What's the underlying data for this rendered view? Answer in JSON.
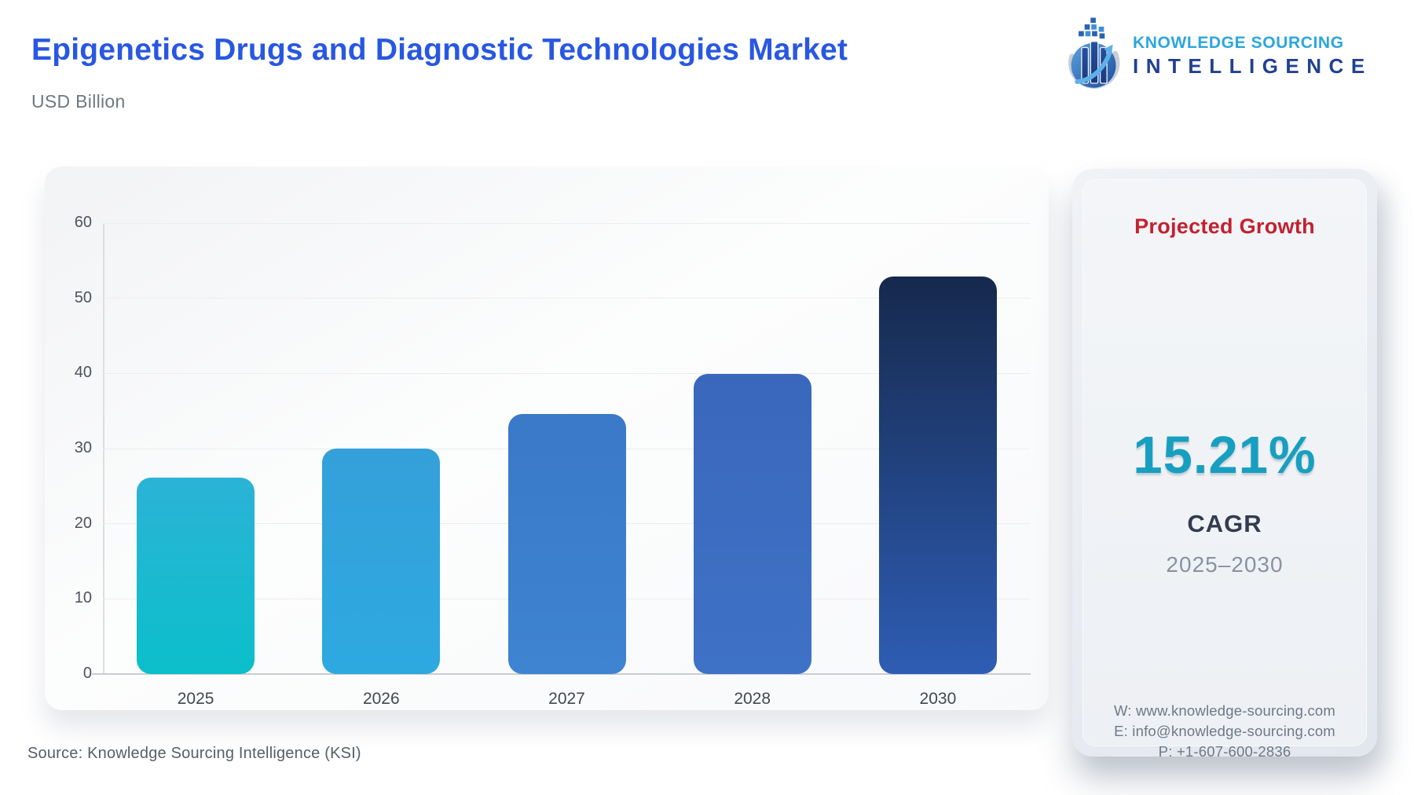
{
  "header": {
    "title": "Epigenetics Drugs and Diagnostic Technologies Market",
    "subtitle": "USD Billion",
    "logo": {
      "line1": "KNOWLEDGE SOURCING",
      "line2": "INTELLIGENCE"
    }
  },
  "chart_data": {
    "type": "bar",
    "title": "Epigenetics Drugs and Diagnostic Technologies Market",
    "xlabel": "",
    "ylabel": "USD Billion",
    "categories": [
      "2025",
      "2026",
      "2027",
      "2028",
      "2030"
    ],
    "values": [
      26.1,
      30.0,
      34.6,
      39.9,
      52.9
    ],
    "ylim": [
      0,
      60
    ],
    "yticks": [
      0,
      10,
      20,
      30,
      40,
      50,
      60
    ],
    "grid": true,
    "legend": false,
    "bar_colors": [
      [
        "#2bb3d6",
        "#0bbfca"
      ],
      [
        "#34a0da",
        "#2ea9e0"
      ],
      [
        "#3a79c8",
        "#3e84d0"
      ],
      [
        "#3a67bc",
        "#3e72c6"
      ],
      [
        "#16294d",
        "#2e5db4"
      ]
    ]
  },
  "growth_panel": {
    "heading": "Projected Growth",
    "value": "15.21%",
    "value_label": "CAGR",
    "period": "2025–2030",
    "contact": {
      "website": "W: www.knowledge-sourcing.com",
      "email": "E: info@knowledge-sourcing.com",
      "phone": "P: +1-607-600-2836"
    }
  },
  "footer": {
    "source_note": "Source: Knowledge Sourcing Intelligence (KSI)"
  },
  "colors": {
    "title_blue": "#2857e2",
    "subtitle_gray": "#6f7880",
    "heading_red": "#c2212f",
    "cagr_teal": "#189fc0",
    "navy_text": "#333b4f",
    "logo_light_blue": "#2ca6dd",
    "logo_navy": "#20418f",
    "gridline": "#ebedee",
    "axis_line": "#c9ccd0"
  }
}
